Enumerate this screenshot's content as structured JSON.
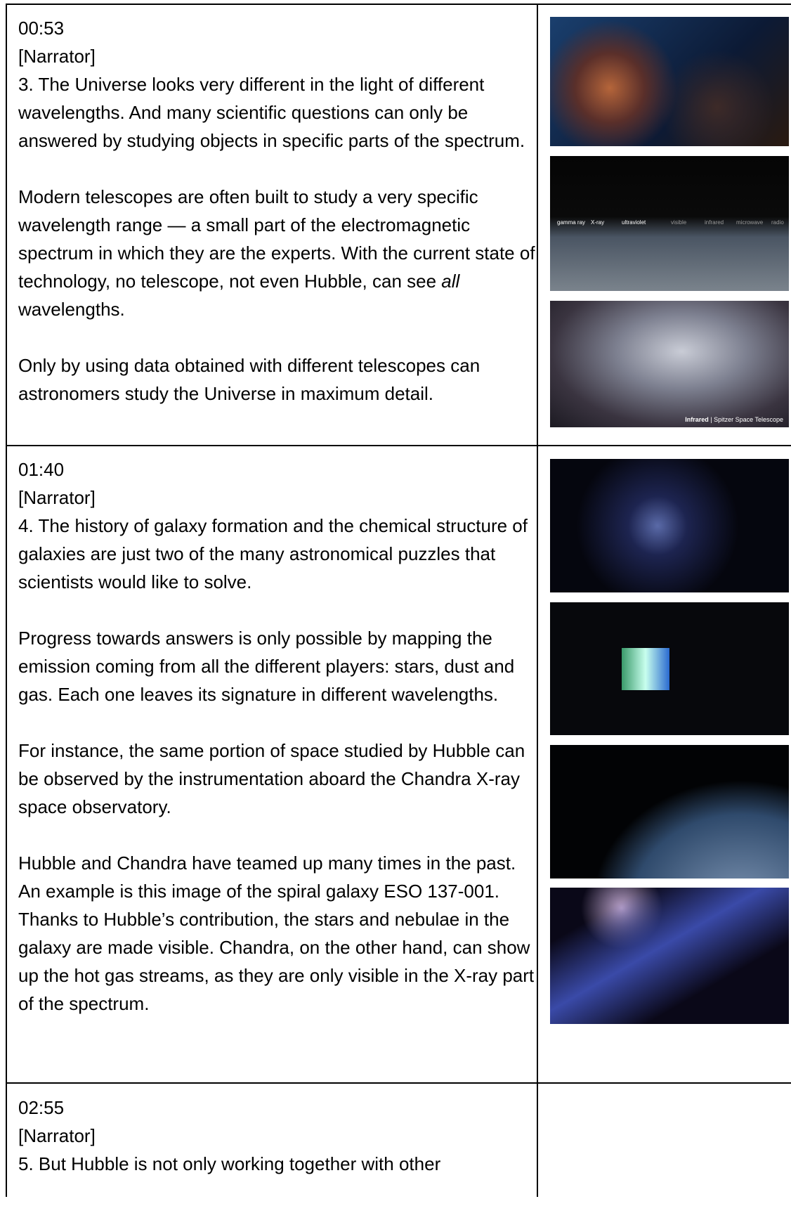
{
  "rows": [
    {
      "time": "00:53",
      "speaker": "[Narrator]",
      "paragraphs": [
        "3. The Universe looks very different in the light of different wavelengths. And many scientific questions can only be answered by studying objects in specific parts of the spectrum.",
        [
          "Modern telescopes are often built to study a very specific wavelength range — a small part of the electromagnetic spectrum in which they are the experts. With the current state of technology, no telescope, not even Hubble, can see ",
          "all",
          " wavelengths."
        ],
        "Only by using data obtained with different telescopes can astronomers study the Universe in maximum detail."
      ]
    },
    {
      "time": "01:40",
      "speaker": "[Narrator]",
      "paragraphs": [
        "4. The history of galaxy formation and the chemical structure of galaxies are just two of the many astronomical puzzles that scientists would like to solve.",
        "Progress towards answers is only possible by mapping the emission coming from all the different players: stars, dust and gas. Each one leaves its signature in different wavelengths.",
        "For instance, the same portion of space studied by Hubble can be observed by the instrumentation aboard the Chandra X-ray space observatory.",
        "Hubble and Chandra have teamed up many times in the past. An example is this image of the spiral galaxy ESO 137-001. Thanks to Hubble’s contribution, the stars and nebulae in the galaxy are made visible. Chandra, on the other hand, can show up the hot gas streams, as they are only visible in the X-ray part of the spectrum."
      ]
    },
    {
      "time": "02:55",
      "speaker": "[Narrator]",
      "paragraphs": [
        "5. But Hubble is not only working together with other"
      ]
    }
  ],
  "image_texts": {
    "spectrum_labels": [
      "gamma ray",
      "X-ray",
      "ultraviolet",
      "visible",
      "infrared",
      "microwave",
      "radio"
    ],
    "caption": [
      "Infrared",
      "| Spitzer Space Telescope"
    ]
  }
}
